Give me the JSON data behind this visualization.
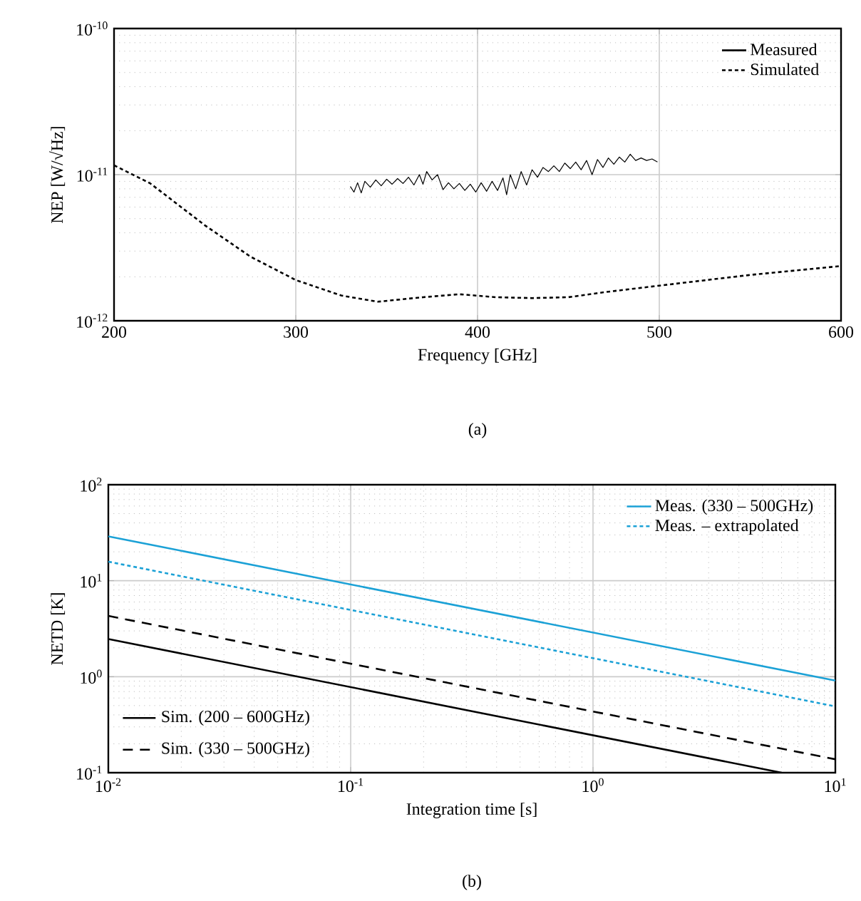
{
  "chart_data": [
    {
      "type": "line",
      "xlabel": "Frequency [GHz]",
      "ylabel": "NEP [W/√Hz]",
      "annotations": [
        "(a)"
      ],
      "log": "y",
      "grid": true,
      "legend": "top right",
      "xlim": [
        200,
        600
      ],
      "ylim": [
        1e-12,
        1e-10
      ],
      "xticks": [
        200,
        300,
        400,
        500,
        600
      ],
      "yticks": [
        {
          "value": 1e-12,
          "label": "10$^{-12}$"
        },
        {
          "value": 1e-11,
          "label": "10$^{-11}$"
        },
        {
          "value": 1e-10,
          "label": "10$^{-10}$"
        }
      ],
      "series": [
        {
          "name": "Measured",
          "color": "#000000",
          "line_style": "solid",
          "x": [
            330,
            332,
            334,
            336,
            338,
            341,
            344,
            347,
            350,
            353,
            356,
            359,
            362,
            365,
            368,
            370,
            372,
            375,
            378,
            381,
            384,
            387,
            390,
            393,
            396,
            399,
            402,
            405,
            408,
            411,
            414,
            416,
            418,
            421,
            424,
            427,
            430,
            433,
            436,
            439,
            442,
            445,
            448,
            451,
            454,
            457,
            460,
            463,
            466,
            469,
            472,
            475,
            478,
            481,
            484,
            487,
            490,
            493,
            496,
            499
          ],
          "values": [
            8.3e-12,
            7.6e-12,
            8.8e-12,
            7.5e-12,
            9e-12,
            8.2e-12,
            9.2e-12,
            8.4e-12,
            9.3e-12,
            8.6e-12,
            9.4e-12,
            8.7e-12,
            9.6e-12,
            8.5e-12,
            1e-11,
            8.6e-12,
            1.05e-11,
            9.2e-12,
            1e-11,
            7.9e-12,
            8.8e-12,
            8e-12,
            8.7e-12,
            7.8e-12,
            8.6e-12,
            7.6e-12,
            8.8e-12,
            7.7e-12,
            9e-12,
            7.8e-12,
            9.5e-12,
            7.3e-12,
            1e-11,
            8e-12,
            1.05e-11,
            8.5e-12,
            1.08e-11,
            9.6e-12,
            1.12e-11,
            1.05e-11,
            1.15e-11,
            1.05e-11,
            1.2e-11,
            1.1e-11,
            1.22e-11,
            1.08e-11,
            1.25e-11,
            1e-11,
            1.27e-11,
            1.12e-11,
            1.3e-11,
            1.18e-11,
            1.32e-11,
            1.22e-11,
            1.38e-11,
            1.25e-11,
            1.3e-11,
            1.25e-11,
            1.28e-11,
            1.22e-11
          ]
        },
        {
          "name": "Simulated",
          "color": "#000000",
          "line_style": "dotted",
          "x": [
            200,
            220,
            250,
            275,
            300,
            325,
            345,
            370,
            390,
            410,
            430,
            450,
            470,
            500,
            550,
            600
          ],
          "values": [
            1.16e-11,
            8.7e-12,
            4.5e-12,
            2.75e-12,
            1.9e-12,
            1.49e-12,
            1.35e-12,
            1.45e-12,
            1.52e-12,
            1.45e-12,
            1.43e-12,
            1.45e-12,
            1.57e-12,
            1.74e-12,
            2.06e-12,
            2.37e-12
          ]
        }
      ]
    },
    {
      "type": "line",
      "xlabel": "Integration time [s]",
      "ylabel": "NETD [K]",
      "annotations": [
        "(b)"
      ],
      "log": "xy",
      "grid": true,
      "legend": "top right",
      "xlim": [
        0.01,
        10
      ],
      "ylim": [
        0.1,
        100
      ],
      "xticks": [
        {
          "value": 0.01,
          "label": "10$^{-2}$"
        },
        {
          "value": 0.1,
          "label": "10$^{-1}$"
        },
        {
          "value": 1,
          "label": "10$^{0}$"
        },
        {
          "value": 10,
          "label": "10$^{1}$"
        }
      ],
      "yticks": [
        {
          "value": 0.1,
          "label": "10$^{-1}$"
        },
        {
          "value": 1,
          "label": "10$^{0}$"
        },
        {
          "value": 10,
          "label": "10$^{1}$"
        },
        {
          "value": 100,
          "label": "10$^{2}$"
        }
      ],
      "series": [
        {
          "name": "Meas. (330 – 500GHz)",
          "color": "#1ba1d6",
          "line_style": "solid",
          "x": [
            0.01,
            10
          ],
          "values": [
            29,
            0.91
          ]
        },
        {
          "name": "Meas. – extrapolated",
          "color": "#1ba1d6",
          "line_style": "dotted",
          "x": [
            0.01,
            10
          ],
          "values": [
            15.8,
            0.49
          ]
        },
        {
          "name": "Sim. (200 – 600GHz)",
          "color": "#000000",
          "line_style": "solid",
          "x": [
            0.01,
            6
          ],
          "values": [
            2.47,
            0.1
          ]
        },
        {
          "name": "Sim. (330 – 500GHz)",
          "color": "#000000",
          "line_style": "dashed",
          "x": [
            0.01,
            10
          ],
          "values": [
            4.3,
            0.138
          ]
        }
      ]
    }
  ]
}
